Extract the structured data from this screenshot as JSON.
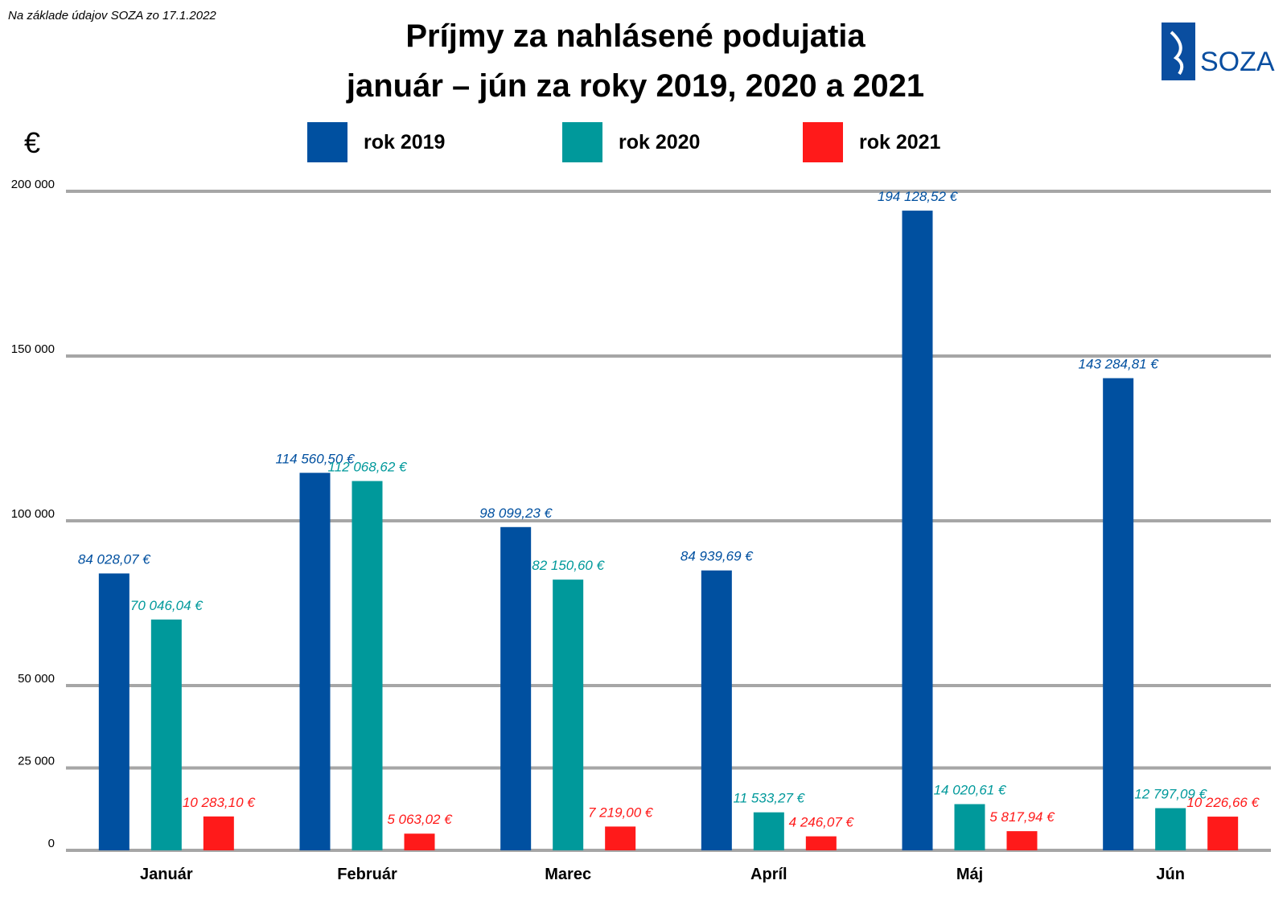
{
  "note": "Na základe údajov SOZA zo 17.1.2022",
  "logo": {
    "text": "SOZA",
    "color": "#0a4ea0"
  },
  "chart_data": {
    "type": "bar",
    "title_line1": "Príjmy za nahlásené podujatia",
    "title_line2": "január  –  jún za roky 2019, 2020 a 2021",
    "unit_label": "€",
    "categories": [
      "Január",
      "Február",
      "Marec",
      "Apríl",
      "Máj",
      "Jún"
    ],
    "ylim": [
      0,
      200000
    ],
    "y_ticks": [
      {
        "value": 0,
        "label": "0"
      },
      {
        "value": 25000,
        "label": "25 000"
      },
      {
        "value": 50000,
        "label": "50 000"
      },
      {
        "value": 100000,
        "label": "100 000"
      },
      {
        "value": 150000,
        "label": "150 000"
      },
      {
        "value": 200000,
        "label": "200 000"
      }
    ],
    "grid": true,
    "legend_position": "top-center",
    "series": [
      {
        "name": "rok 2019",
        "color": "#0050a0",
        "values": [
          84028.07,
          114560.5,
          98099.23,
          84939.69,
          194128.52,
          143284.81
        ],
        "labels": [
          "84 028,07 €",
          "114 560,50 €",
          "98 099,23 €",
          "84 939,69 €",
          "194 128,52 €",
          "143 284,81 €"
        ]
      },
      {
        "name": "rok 2020",
        "color": "#00999b",
        "values": [
          70046.04,
          112068.62,
          82150.6,
          11533.27,
          14020.61,
          12797.09
        ],
        "labels": [
          "70 046,04 €",
          "112 068,62 €",
          "82 150,60 €",
          "11 533,27 €",
          "14 020,61 €",
          "12 797,09 €"
        ]
      },
      {
        "name": "rok 2021",
        "color": "#ff1a1a",
        "values": [
          10283.1,
          5063.02,
          7219.0,
          4246.07,
          5817.94,
          10226.66
        ],
        "labels": [
          "10 283,10 €",
          "5 063,02 €",
          "7 219,00 €",
          "4 246,07 €",
          "5 817,94 €",
          "10 226,66 €"
        ]
      }
    ]
  }
}
